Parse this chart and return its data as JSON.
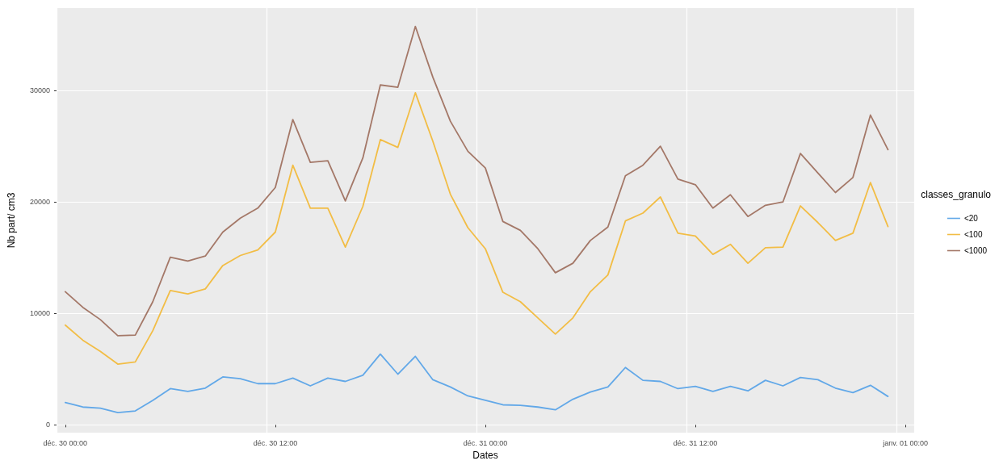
{
  "chart_data": {
    "type": "line",
    "xlabel": "Dates",
    "ylabel": "Nb part/ cm3",
    "legend_title": "classes_granulo",
    "legend": "right",
    "grid": true,
    "marker": "none",
    "line_style": "solid",
    "categories": [
      "déc. 30 00:00",
      null,
      null,
      null,
      null,
      null,
      null,
      null,
      null,
      null,
      null,
      null,
      "déc. 30 12:00",
      null,
      null,
      null,
      null,
      null,
      null,
      null,
      null,
      null,
      null,
      null,
      "déc. 31 00:00",
      null,
      null,
      null,
      null,
      null,
      null,
      null,
      null,
      null,
      null,
      null,
      "déc. 31 12:00",
      null,
      null,
      null,
      null,
      null,
      null,
      null,
      null,
      null,
      null,
      null,
      "janv. 01 00:00"
    ],
    "ylim": [
      -700,
      37400
    ],
    "yticks": [
      0,
      10000,
      20000,
      30000
    ],
    "series": [
      {
        "name": "<20",
        "color": "#62a8e8",
        "values": [
          2000,
          1600,
          1500,
          1100,
          1250,
          2200,
          3250,
          3000,
          3300,
          4300,
          4150,
          3700,
          3700,
          4200,
          3500,
          4200,
          3900,
          4450,
          6350,
          4550,
          6150,
          4050,
          3400,
          2600,
          2200,
          1800,
          1750,
          1600,
          1350,
          2300,
          2950,
          3400,
          5150,
          4000,
          3900,
          3250,
          3450,
          3000,
          3450,
          3050,
          4000,
          3500,
          4250,
          4050,
          3300,
          2900,
          3550,
          2550,
          null
        ]
      },
      {
        "name": "<100",
        "color": "#f2bd45",
        "values": [
          8950,
          7600,
          6600,
          5450,
          5650,
          8450,
          12050,
          11750,
          12200,
          14300,
          15200,
          15700,
          17300,
          23300,
          19450,
          19450,
          15950,
          19600,
          25600,
          24900,
          29800,
          25450,
          20700,
          17700,
          15800,
          11900,
          11050,
          9600,
          8150,
          9600,
          11950,
          13450,
          18300,
          19000,
          20450,
          17200,
          16950,
          15300,
          16200,
          14500,
          15900,
          15950,
          19650,
          18150,
          16550,
          17200,
          21750,
          17800,
          null
        ]
      },
      {
        "name": "<1000",
        "color": "#a47868",
        "values": [
          11950,
          10550,
          9450,
          8000,
          8050,
          11050,
          15050,
          14700,
          15150,
          17300,
          18550,
          19450,
          21300,
          27400,
          23550,
          23700,
          20100,
          23950,
          30500,
          30300,
          35750,
          31200,
          27250,
          24550,
          23050,
          18250,
          17450,
          15800,
          13650,
          14500,
          16550,
          17750,
          22350,
          23300,
          25000,
          22050,
          21550,
          19450,
          20650,
          18700,
          19700,
          20000,
          24350,
          22600,
          20850,
          22200,
          27800,
          24700,
          null
        ]
      }
    ]
  }
}
